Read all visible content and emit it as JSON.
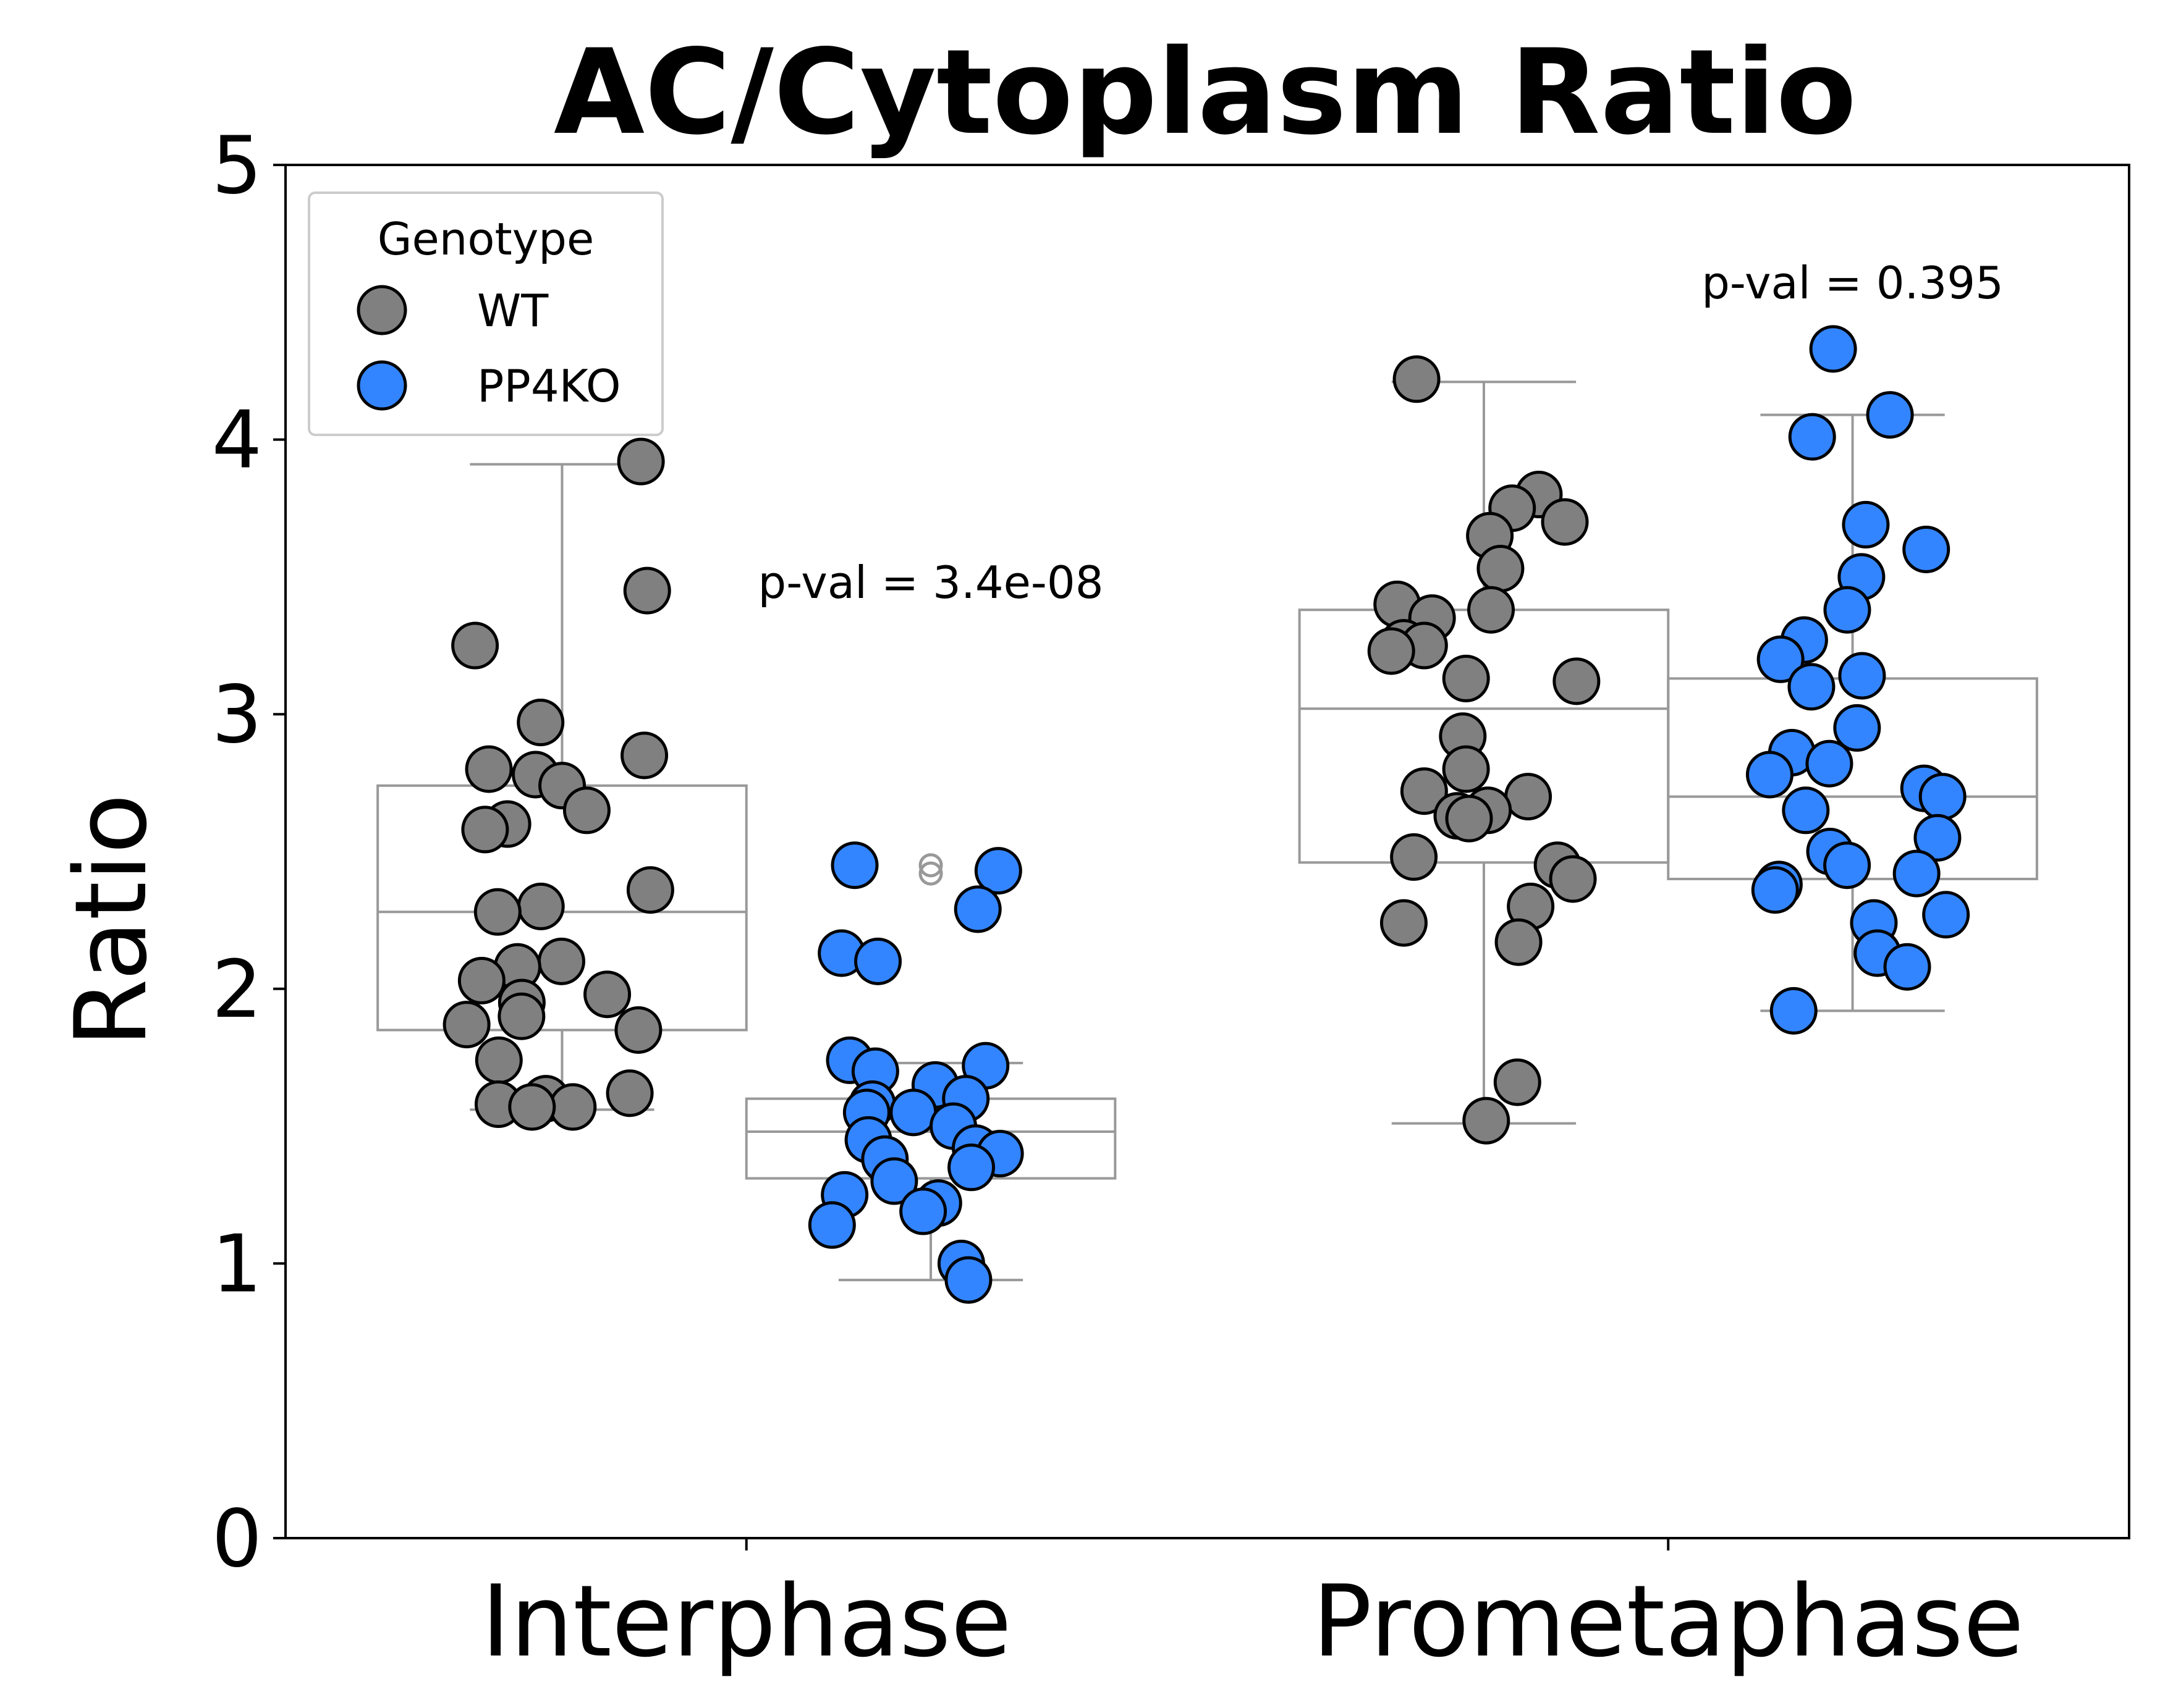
{
  "chart_data": {
    "type": "box",
    "title": "AC/Cytoplasm Ratio",
    "ylabel": "Ratio",
    "xlabel": "",
    "ylim": [
      0,
      5
    ],
    "yticks": [
      "0",
      "1",
      "2",
      "3",
      "4",
      "5"
    ],
    "categories": [
      "Interphase",
      "Prometaphase"
    ],
    "legend": {
      "title": "Genotype",
      "placement": "upper-left",
      "entries": [
        "WT",
        "PP4KO"
      ]
    },
    "series": [
      {
        "name": "WT",
        "color": "#808080",
        "boxes": [
          {
            "q1": 1.85,
            "median": 2.28,
            "q3": 2.74,
            "whisker_low": 1.56,
            "whisker_high": 3.91,
            "outliers": []
          },
          {
            "q1": 2.46,
            "median": 3.02,
            "q3": 3.38,
            "whisker_low": 1.51,
            "whisker_high": 4.21,
            "outliers": []
          }
        ],
        "points": [
          [
            3.92,
            3.45,
            3.25,
            2.97,
            2.85,
            2.8,
            2.78,
            2.74,
            2.65,
            2.6,
            2.58,
            2.36,
            2.3,
            2.28,
            2.1,
            2.08,
            2.03,
            1.98,
            1.95,
            1.9,
            1.87,
            1.85,
            1.74,
            1.62,
            1.6,
            1.58,
            1.57,
            1.57
          ],
          [
            4.22,
            3.8,
            3.75,
            3.7,
            3.65,
            3.53,
            3.4,
            3.38,
            3.35,
            3.26,
            3.25,
            3.23,
            3.13,
            3.12,
            2.92,
            2.8,
            2.72,
            2.7,
            2.65,
            2.63,
            2.62,
            2.48,
            2.45,
            2.4,
            2.3,
            2.24,
            2.17,
            1.66,
            1.52
          ]
        ]
      },
      {
        "name": "PP4KO",
        "color": "#3385ff",
        "boxes": [
          {
            "q1": 1.31,
            "median": 1.48,
            "q3": 1.6,
            "whisker_low": 0.94,
            "whisker_high": 1.73,
            "outliers": [
              2.45,
              2.42
            ]
          },
          {
            "q1": 2.4,
            "median": 2.7,
            "q3": 3.13,
            "whisker_low": 1.92,
            "whisker_high": 4.09,
            "outliers": []
          }
        ],
        "points": [
          [
            2.45,
            2.43,
            2.29,
            2.13,
            2.1,
            1.74,
            1.72,
            1.7,
            1.65,
            1.6,
            1.58,
            1.55,
            1.55,
            1.5,
            1.45,
            1.42,
            1.4,
            1.38,
            1.35,
            1.3,
            1.25,
            1.22,
            1.19,
            1.14,
            1.0,
            0.94
          ],
          [
            4.33,
            4.09,
            4.01,
            3.69,
            3.6,
            3.5,
            3.38,
            3.27,
            3.2,
            3.14,
            3.1,
            2.95,
            2.86,
            2.82,
            2.78,
            2.73,
            2.7,
            2.65,
            2.55,
            2.5,
            2.45,
            2.42,
            2.38,
            2.36,
            2.27,
            2.24,
            2.13,
            2.08,
            1.92
          ]
        ]
      }
    ],
    "annotations": [
      {
        "text": "p-val = 3.4e-08",
        "category": "Interphase",
        "y": 3.48
      },
      {
        "text": "p-val = 0.395",
        "category": "Prometaphase",
        "y": 4.57
      }
    ]
  }
}
